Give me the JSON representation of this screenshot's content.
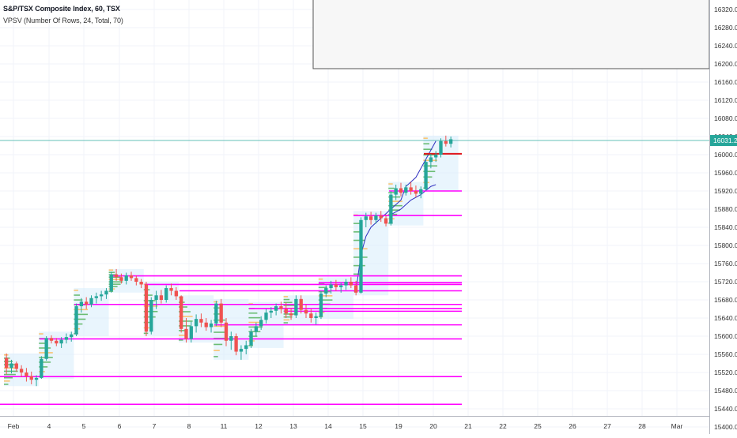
{
  "header": {
    "title": "S&P/TSX Composite Index, 60, TSX",
    "indicator": "VPSV (Number Of Rows, 24, Total, 70)"
  },
  "price_label": "16031.24",
  "chart_data": {
    "type": "candlestick",
    "title": "S&P/TSX Composite Index, 60, TSX",
    "ylim": [
      15390,
      16370
    ],
    "y_ticks": [
      16320,
      16280,
      16240,
      16200,
      16160,
      16120,
      16080,
      16040,
      16000,
      15960,
      15920,
      15880,
      15840,
      15800,
      15760,
      15720,
      15680,
      15640,
      15600,
      15560,
      15520,
      15480,
      15440,
      15400
    ],
    "x_labels": [
      "Feb",
      "4",
      "5",
      "6",
      "7",
      "8",
      "11",
      "12",
      "13",
      "14",
      "15",
      "19",
      "20",
      "21",
      "22",
      "25",
      "26",
      "27",
      "28",
      "Mar"
    ],
    "last_price": 16031.24,
    "colors": {
      "up": "#26a69a",
      "down": "#ef5350",
      "poc": "#ff00ff",
      "poc_current": "#e0161c",
      "value_area": "#d7ecfb",
      "price_line": "#26a69a",
      "volume_profile": "#4caf50",
      "vah_val": "#3030c0"
    },
    "poc_lines": [
      {
        "from": "Feb",
        "value": 15450
      },
      {
        "from": "Feb",
        "value": 15511
      },
      {
        "from": "4",
        "value": 15594
      },
      {
        "from": "5",
        "value": 15670
      },
      {
        "from": "6",
        "value": 15733
      },
      {
        "from": "7",
        "value": 15714
      },
      {
        "from": "8",
        "value": 15700
      },
      {
        "from": "11",
        "value": 15625
      },
      {
        "from": "12",
        "value": 15661
      },
      {
        "from": "13",
        "value": 15655
      },
      {
        "from": "14",
        "value": 15718
      },
      {
        "from": "15",
        "value": 15866
      },
      {
        "from": "19",
        "value": 15920
      },
      {
        "from": "20",
        "value": 16002
      }
    ],
    "candles": [
      [
        15552,
        15562,
        15516,
        15530
      ],
      [
        15530,
        15548,
        15518,
        15540
      ],
      [
        15540,
        15544,
        15522,
        15528
      ],
      [
        15528,
        15536,
        15510,
        15520
      ],
      [
        15520,
        15530,
        15500,
        15512
      ],
      [
        15512,
        15522,
        15494,
        15504
      ],
      [
        15504,
        15514,
        15490,
        15508
      ],
      [
        15508,
        15556,
        15506,
        15550
      ],
      [
        15550,
        15600,
        15546,
        15596
      ],
      [
        15596,
        15602,
        15584,
        15590
      ],
      [
        15590,
        15596,
        15578,
        15584
      ],
      [
        15584,
        15598,
        15574,
        15592
      ],
      [
        15592,
        15606,
        15584,
        15598
      ],
      [
        15598,
        15610,
        15588,
        15604
      ],
      [
        15604,
        15672,
        15600,
        15666
      ],
      [
        15666,
        15684,
        15652,
        15676
      ],
      [
        15676,
        15686,
        15660,
        15670
      ],
      [
        15670,
        15690,
        15664,
        15684
      ],
      [
        15684,
        15696,
        15672,
        15688
      ],
      [
        15688,
        15700,
        15678,
        15692
      ],
      [
        15692,
        15706,
        15682,
        15700
      ],
      [
        15700,
        15742,
        15696,
        15736
      ],
      [
        15736,
        15748,
        15722,
        15730
      ],
      [
        15730,
        15738,
        15716,
        15722
      ],
      [
        15722,
        15740,
        15714,
        15734
      ],
      [
        15734,
        15742,
        15722,
        15728
      ],
      [
        15728,
        15734,
        15712,
        15720
      ],
      [
        15720,
        15726,
        15706,
        15714
      ],
      [
        15714,
        15720,
        15600,
        15610
      ],
      [
        15610,
        15686,
        15604,
        15680
      ],
      [
        15680,
        15700,
        15660,
        15690
      ],
      [
        15690,
        15702,
        15672,
        15680
      ],
      [
        15680,
        15712,
        15674,
        15706
      ],
      [
        15706,
        15716,
        15690,
        15700
      ],
      [
        15700,
        15708,
        15680,
        15688
      ],
      [
        15688,
        15690,
        15608,
        15616
      ],
      [
        15616,
        15640,
        15586,
        15594
      ],
      [
        15594,
        15632,
        15586,
        15622
      ],
      [
        15622,
        15648,
        15608,
        15638
      ],
      [
        15638,
        15650,
        15620,
        15630
      ],
      [
        15630,
        15640,
        15612,
        15620
      ],
      [
        15620,
        15636,
        15608,
        15628
      ],
      [
        15628,
        15678,
        15622,
        15672
      ],
      [
        15672,
        15682,
        15620,
        15630
      ],
      [
        15630,
        15640,
        15578,
        15590
      ],
      [
        15590,
        15610,
        15570,
        15600
      ],
      [
        15600,
        15606,
        15558,
        15566
      ],
      [
        15566,
        15580,
        15548,
        15572
      ],
      [
        15572,
        15590,
        15560,
        15580
      ],
      [
        15580,
        15616,
        15574,
        15610
      ],
      [
        15610,
        15630,
        15600,
        15622
      ],
      [
        15622,
        15644,
        15614,
        15636
      ],
      [
        15636,
        15660,
        15628,
        15652
      ],
      [
        15652,
        15664,
        15640,
        15656
      ],
      [
        15656,
        15672,
        15646,
        15666
      ],
      [
        15666,
        15676,
        15650,
        15660
      ],
      [
        15660,
        15674,
        15640,
        15650
      ],
      [
        15650,
        15662,
        15636,
        15646
      ],
      [
        15646,
        15690,
        15640,
        15682
      ],
      [
        15682,
        15690,
        15650,
        15658
      ],
      [
        15658,
        15670,
        15640,
        15650
      ],
      [
        15650,
        15660,
        15630,
        15640
      ],
      [
        15640,
        15652,
        15626,
        15644
      ],
      [
        15644,
        15700,
        15638,
        15694
      ],
      [
        15694,
        15712,
        15686,
        15706
      ],
      [
        15706,
        15722,
        15694,
        15714
      ],
      [
        15714,
        15724,
        15700,
        15708
      ],
      [
        15708,
        15718,
        15696,
        15712
      ],
      [
        15712,
        15726,
        15702,
        15720
      ],
      [
        15720,
        15730,
        15706,
        15712
      ],
      [
        15712,
        15722,
        15690,
        15696
      ],
      [
        15696,
        15862,
        15694,
        15856
      ],
      [
        15856,
        15872,
        15840,
        15864
      ],
      [
        15864,
        15874,
        15846,
        15856
      ],
      [
        15856,
        15872,
        15848,
        15866
      ],
      [
        15866,
        15876,
        15852,
        15860
      ],
      [
        15860,
        15868,
        15842,
        15848
      ],
      [
        15848,
        15920,
        15844,
        15912
      ],
      [
        15912,
        15934,
        15900,
        15926
      ],
      [
        15926,
        15938,
        15908,
        15916
      ],
      [
        15916,
        15934,
        15910,
        15928
      ],
      [
        15928,
        15940,
        15912,
        15920
      ],
      [
        15920,
        15932,
        15906,
        15914
      ],
      [
        15914,
        15930,
        15904,
        15924
      ],
      [
        15924,
        15990,
        15920,
        15984
      ],
      [
        15984,
        16002,
        15970,
        15994
      ],
      [
        15994,
        16008,
        15984,
        16000
      ],
      [
        16000,
        16036,
        15994,
        16030
      ],
      [
        16030,
        16042,
        16018,
        16024
      ],
      [
        16024,
        16040,
        16016,
        16034
      ]
    ]
  }
}
